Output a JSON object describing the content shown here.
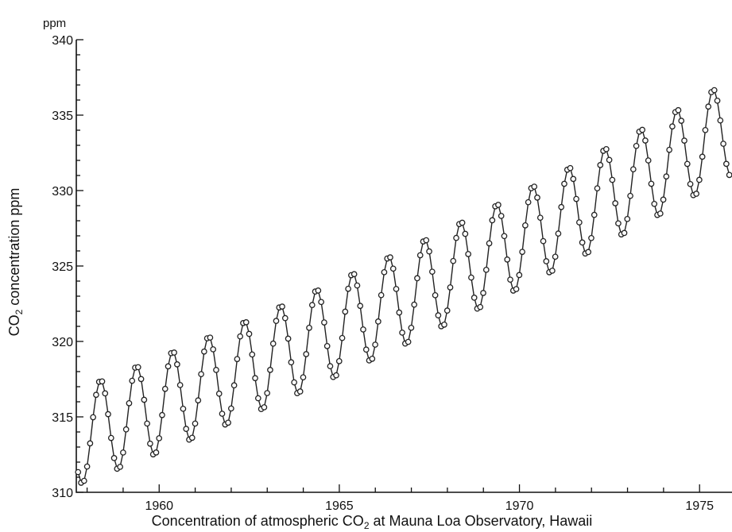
{
  "chart_data": {
    "type": "line",
    "caption_parts": {
      "pre": "Concentration of atmospheric CO",
      "sub": "2",
      "post": " at Mauna Loa Observatory, Hawaii"
    },
    "ylabel_parts": {
      "pre": "CO",
      "sub": "2",
      "post": " concentration ppm"
    },
    "y_unit": "ppm",
    "xlim": [
      1957.7,
      1975.9
    ],
    "ylim": [
      310,
      340
    ],
    "x_ticks": [
      1960,
      1965,
      1970,
      1975
    ],
    "x_tick_labels": [
      "1960",
      "1965",
      "1970",
      "1975"
    ],
    "y_ticks": [
      310,
      315,
      320,
      325,
      330,
      335,
      340
    ],
    "y_tick_labels": [
      "310",
      "315",
      "320",
      "325",
      "330",
      "335",
      "340"
    ],
    "grid": false,
    "legend": "none",
    "series": [
      {
        "trend_start": 313.9,
        "trend_rate": 0.92,
        "trend_accel": 0.012,
        "seasonal_amplitude": 3.2,
        "peak_month_fraction": 0.37,
        "x_start": 1957.75,
        "x_end": 1975.9,
        "step": 0.0833
      }
    ]
  }
}
